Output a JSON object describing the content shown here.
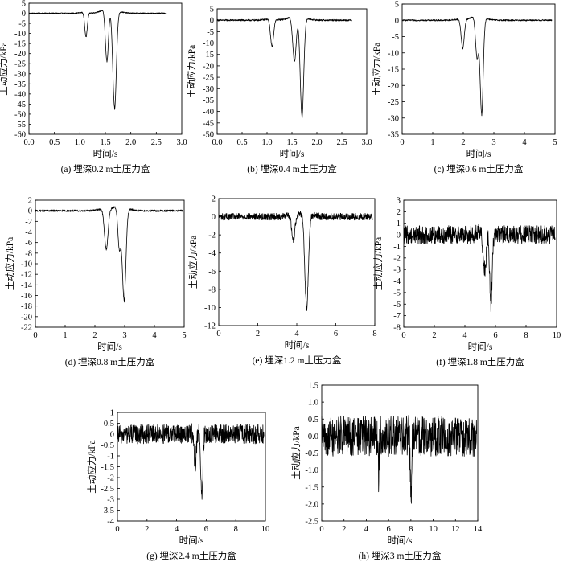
{
  "chart_data": [
    {
      "type": "line",
      "id": "a",
      "caption": "(a) 埋深0.2 m土压力盒",
      "xlabel": "时间/s",
      "ylabel": "土动应力/kPa",
      "xlim": [
        0,
        3
      ],
      "ylim": [
        -60,
        5
      ],
      "xticks": [
        0,
        0.5,
        1,
        1.5,
        2,
        2.5,
        3
      ],
      "xtick_labels": [
        "0.0",
        "0.5",
        "1.0",
        "1.5",
        "2.0",
        "2.5",
        "3.0"
      ],
      "yticks": [
        5,
        0,
        -5,
        -10,
        -15,
        -20,
        -25,
        -30,
        -35,
        -40,
        -45,
        -50,
        -55,
        -60
      ],
      "ytick_labels": [
        "5",
        "0",
        "-5",
        "-10",
        "-15",
        "-20",
        "-25",
        "-30",
        "-35",
        "-40",
        "-45",
        "-50",
        "-55",
        "-60"
      ],
      "x_end": 2.7,
      "noise": 0.5,
      "baseline": 0,
      "peaks": [
        {
          "t": 1.12,
          "depth": -12,
          "width": 0.025
        },
        {
          "t": 1.53,
          "depth": -26,
          "width": 0.03
        },
        {
          "t": 1.68,
          "depth": -49,
          "width": 0.035
        }
      ],
      "grid": false
    },
    {
      "type": "line",
      "id": "b",
      "caption": "(b) 埋深0.4 m土压力盒",
      "xlabel": "时间/s",
      "ylabel": "土动应力/kPa",
      "xlim": [
        0,
        3
      ],
      "ylim": [
        -50,
        5
      ],
      "xticks": [
        0,
        0.5,
        1,
        1.5,
        2,
        2.5,
        3
      ],
      "xtick_labels": [
        "0.0",
        "0.5",
        "1.0",
        "1.5",
        "2.0",
        "2.5",
        "3.0"
      ],
      "yticks": [
        5,
        0,
        -5,
        -10,
        -15,
        -20,
        -25,
        -30,
        -35,
        -40,
        -45,
        -50
      ],
      "ytick_labels": [
        "5",
        "0",
        "-5",
        "-10",
        "-15",
        "-20",
        "-25",
        "-30",
        "-35",
        "-40",
        "-45",
        "-50"
      ],
      "x_end": 2.7,
      "noise": 0.7,
      "baseline": 0,
      "peaks": [
        {
          "t": 1.1,
          "depth": -12,
          "width": 0.03
        },
        {
          "t": 1.55,
          "depth": -20,
          "width": 0.035
        },
        {
          "t": 1.7,
          "depth": -44,
          "width": 0.035
        }
      ],
      "grid": false
    },
    {
      "type": "line",
      "id": "c",
      "caption": "(c) 埋深0.6 m土压力盒",
      "xlabel": "时间/s",
      "ylabel": "土动应力/kPa",
      "xlim": [
        0,
        5
      ],
      "ylim": [
        -35,
        5
      ],
      "xticks": [
        0,
        1,
        2,
        3,
        4,
        5
      ],
      "xtick_labels": [
        "0",
        "1",
        "2",
        "3",
        "4",
        "5"
      ],
      "yticks": [
        5,
        0,
        -5,
        -10,
        -15,
        -20,
        -25,
        -30,
        -35
      ],
      "ytick_labels": [
        "5",
        "0",
        "-5",
        "-10",
        "-15",
        "-20",
        "-25",
        "-30",
        "-35"
      ],
      "x_end": 4.9,
      "noise": 0.45,
      "baseline": 0,
      "peaks": [
        {
          "t": 1.98,
          "depth": -9,
          "width": 0.05
        },
        {
          "t": 2.45,
          "depth": -13,
          "width": 0.05
        },
        {
          "t": 2.6,
          "depth": -30,
          "width": 0.05
        }
      ],
      "grid": false
    },
    {
      "type": "line",
      "id": "d",
      "caption": "(d) 埋深0.8 m土压力盒",
      "xlabel": "时间/s",
      "ylabel": "土动应力/kPa",
      "xlim": [
        0,
        5
      ],
      "ylim": [
        -22,
        2
      ],
      "xticks": [
        0,
        1,
        2,
        3,
        4,
        5
      ],
      "xtick_labels": [
        "0",
        "1",
        "2",
        "3",
        "4",
        "5"
      ],
      "yticks": [
        2,
        0,
        -2,
        -4,
        -6,
        -8,
        -10,
        -12,
        -14,
        -16,
        -18,
        -20,
        -22
      ],
      "ytick_labels": [
        "2",
        "0",
        "-2",
        "-4",
        "-6",
        "-8",
        "-10",
        "-12",
        "-14",
        "-16",
        "-18",
        "-20",
        "-22"
      ],
      "x_end": 4.95,
      "noise": 0.35,
      "baseline": 0,
      "peaks": [
        {
          "t": 2.38,
          "depth": -7.6,
          "width": 0.06
        },
        {
          "t": 2.82,
          "depth": -8,
          "width": 0.05
        },
        {
          "t": 2.98,
          "depth": -17.6,
          "width": 0.06
        }
      ],
      "grid": false
    },
    {
      "type": "line",
      "id": "e",
      "caption": "(e) 埋深1.2 m土压力盒",
      "xlabel": "时间/s",
      "ylabel": "土动应力/kPa",
      "xlim": [
        0,
        8
      ],
      "ylim": [
        -12,
        2
      ],
      "xticks": [
        0,
        2,
        4,
        6,
        8
      ],
      "xtick_labels": [
        "0",
        "2",
        "4",
        "6",
        "8"
      ],
      "yticks": [
        2,
        0,
        -2,
        -4,
        -6,
        -8,
        -10,
        -12
      ],
      "ytick_labels": [
        "2",
        "0",
        "-2",
        "-4",
        "-6",
        "-8",
        "-10",
        "-12"
      ],
      "x_end": 7.9,
      "noise": 0.75,
      "baseline": 0,
      "peaks": [
        {
          "t": 3.82,
          "depth": -2.8,
          "width": 0.08
        },
        {
          "t": 4.5,
          "depth": -10.4,
          "width": 0.09
        }
      ],
      "grid": false
    },
    {
      "type": "line",
      "id": "f",
      "caption": "(f) 埋深1.8 m土压力盒",
      "xlabel": "时间/s",
      "ylabel": "土动应力/kPa",
      "xlim": [
        0,
        10
      ],
      "ylim": [
        -8,
        3
      ],
      "xticks": [
        0,
        2,
        4,
        6,
        8,
        10
      ],
      "xtick_labels": [
        "0",
        "2",
        "4",
        "6",
        "8",
        "10"
      ],
      "yticks": [
        3,
        2,
        1,
        0,
        -1,
        -2,
        -3,
        -4,
        -5,
        -6,
        -7,
        -8
      ],
      "ytick_labels": [
        "3",
        "2",
        "1",
        "0",
        "-1",
        "-2",
        "-3",
        "-4",
        "-5",
        "-6",
        "-7",
        "-8"
      ],
      "x_end": 9.9,
      "noise": 1.6,
      "baseline": 0,
      "peaks": [
        {
          "t": 5.3,
          "depth": -3.2,
          "width": 0.1
        },
        {
          "t": 5.7,
          "depth": -6.4,
          "width": 0.08
        }
      ],
      "grid": false
    },
    {
      "type": "line",
      "id": "g",
      "caption": "(g) 埋深2.4 m土压力盒",
      "xlabel": "时间/s",
      "ylabel": "土动应力/kPa",
      "xlim": [
        0,
        10
      ],
      "ylim": [
        -4,
        1
      ],
      "xticks": [
        0,
        2,
        4,
        6,
        8,
        10
      ],
      "xtick_labels": [
        "0",
        "2",
        "4",
        "6",
        "8",
        "10"
      ],
      "yticks": [
        1,
        0.5,
        0,
        -0.5,
        -1,
        -1.5,
        -2,
        -2.5,
        -3,
        -3.5,
        -4
      ],
      "ytick_labels": [
        "1",
        "0.5",
        "0",
        "-0.5",
        "-1",
        "-1.5",
        "-2",
        "-2.5",
        "-3",
        "-3.5",
        "-4"
      ],
      "x_end": 9.9,
      "noise": 0.9,
      "baseline": 0,
      "peaks": [
        {
          "t": 5.25,
          "depth": -1.5,
          "width": 0.08
        },
        {
          "t": 5.7,
          "depth": -3.2,
          "width": 0.07
        }
      ],
      "grid": false
    },
    {
      "type": "line",
      "id": "h",
      "caption": "(h) 埋深3 m土压力盒",
      "xlabel": "时间/s",
      "ylabel": "土动应力/kPa",
      "xlim": [
        0,
        14
      ],
      "ylim": [
        -2.5,
        1.5
      ],
      "xticks": [
        0,
        2,
        4,
        6,
        8,
        10,
        12,
        14
      ],
      "xtick_labels": [
        "0",
        "2",
        "4",
        "6",
        "8",
        "10",
        "12",
        "14"
      ],
      "yticks": [
        1.5,
        1,
        0.5,
        0,
        -0.5,
        -1,
        -1.5,
        -2,
        -2.5
      ],
      "ytick_labels": [
        "1.5",
        "1.0",
        "0.5",
        "0.0",
        "-0.5",
        "-1.0",
        "-1.5",
        "-2.0",
        "-2.5"
      ],
      "x_end": 13.9,
      "noise": 1.2,
      "baseline": 0,
      "peaks": [
        {
          "t": 5.1,
          "depth": -1.2,
          "width": 0.05
        },
        {
          "t": 8.0,
          "depth": -1.9,
          "width": 0.06
        }
      ],
      "grid": false
    }
  ]
}
